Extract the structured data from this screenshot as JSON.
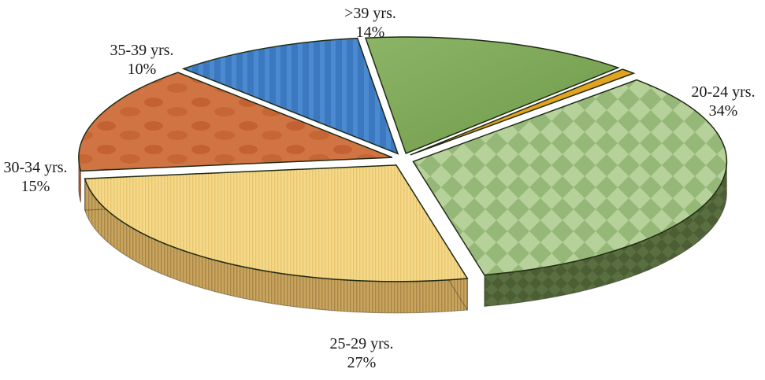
{
  "chart_data": {
    "type": "pie",
    "title": "",
    "style": "3d-exploded",
    "series": [
      {
        "name": ">39 yrs.",
        "value": 14,
        "percent_label": "14%",
        "color": "#7fa55a"
      },
      {
        "name": "",
        "value": 0.8,
        "percent_label": "",
        "color": "#e2a31e"
      },
      {
        "name": "20-24 yrs.",
        "value": 34,
        "percent_label": "34%",
        "color": "#a6c48a"
      },
      {
        "name": "25-29 yrs.",
        "value": 27,
        "percent_label": "27%",
        "color": "#f0d27f"
      },
      {
        "name": "30-34 yrs.",
        "value": 15,
        "percent_label": "15%",
        "color": "#cd6a37"
      },
      {
        "name": "35-39 yrs.",
        "value": 10,
        "percent_label": "10%",
        "color": "#3b78c0"
      }
    ]
  }
}
